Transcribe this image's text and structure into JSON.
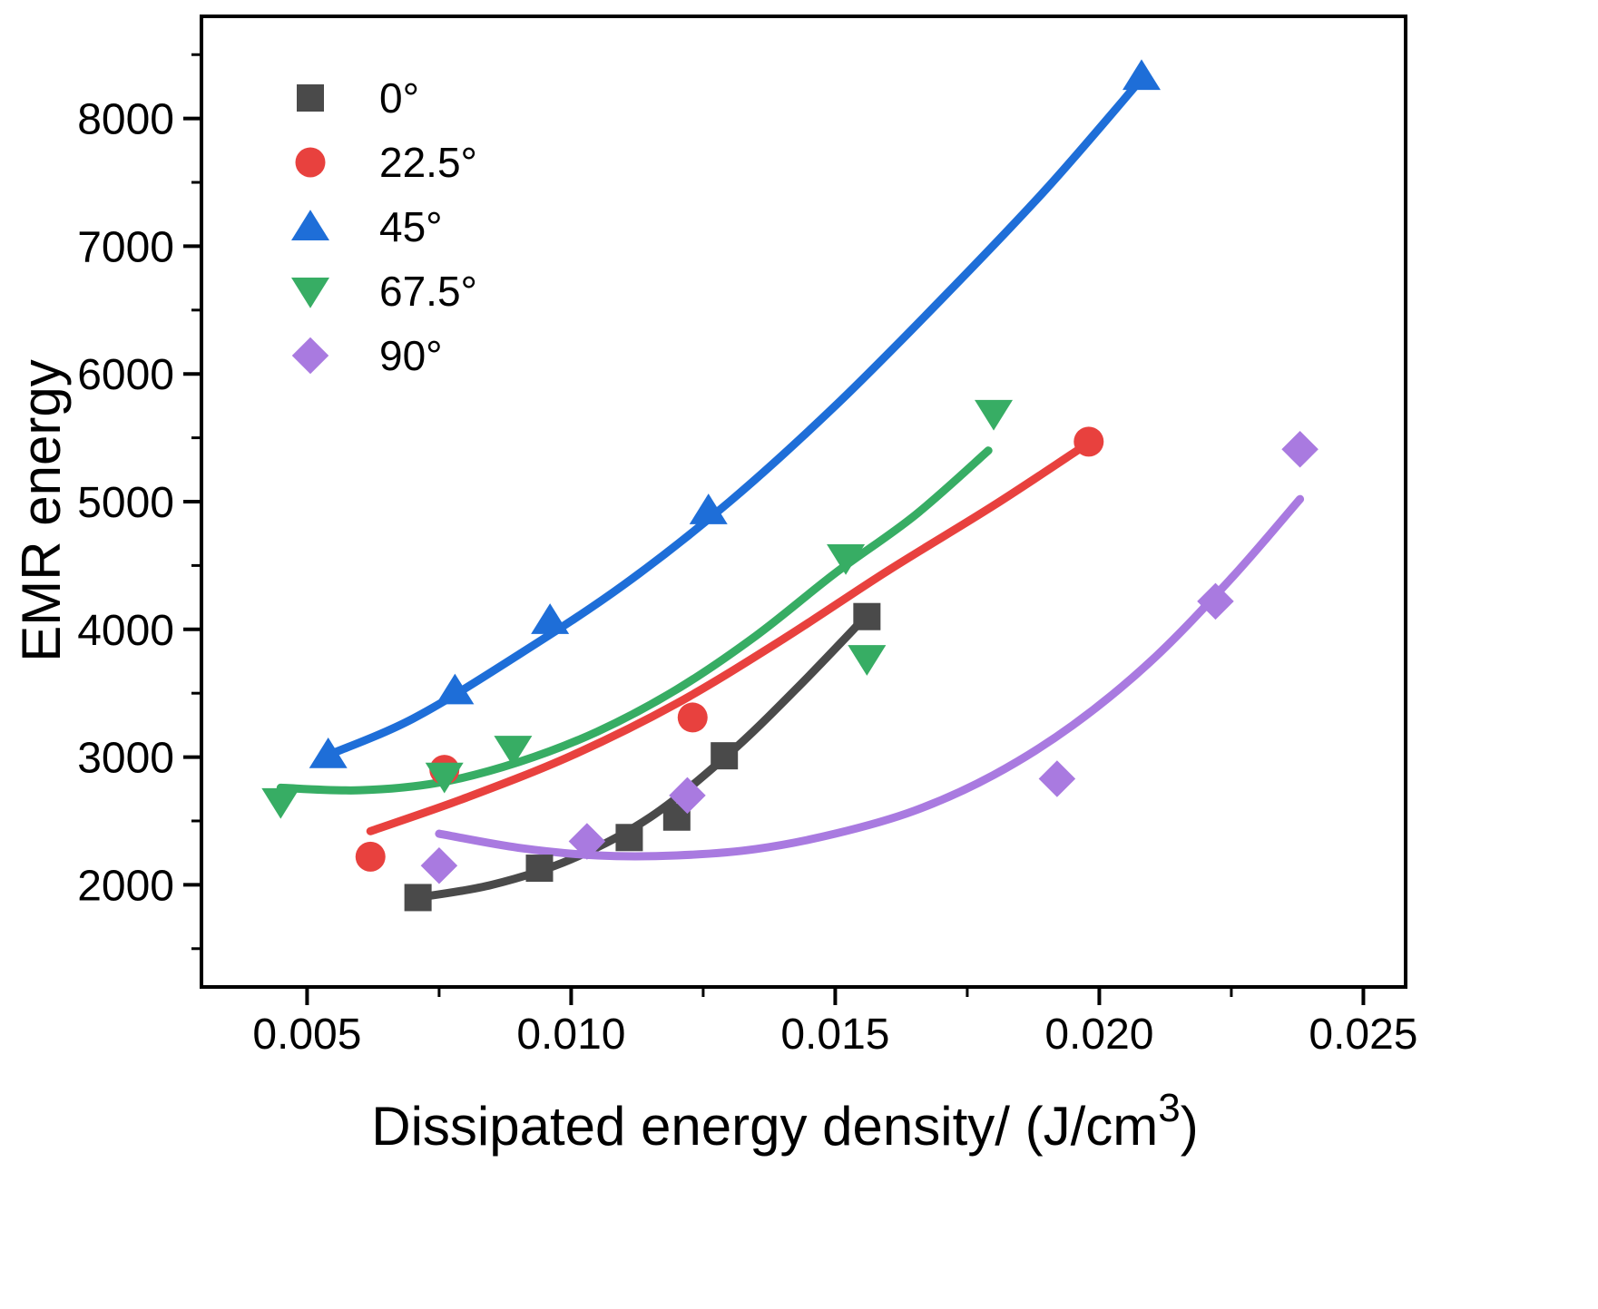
{
  "chart_data": {
    "type": "scatter",
    "title": "",
    "xlabel": "Dissipated energy density/  (J/cm",
    "xlabel_sup": "3",
    "xlabel_tail": ")",
    "ylabel": "EMR energy",
    "xlim": [
      0.003,
      0.0258
    ],
    "ylim": [
      1200,
      8800
    ],
    "x_ticks": [
      0.005,
      0.01,
      0.015,
      0.02,
      0.025
    ],
    "x_tick_labels": [
      "0.005",
      "0.010",
      "0.015",
      "0.020",
      "0.025"
    ],
    "y_ticks": [
      2000,
      3000,
      4000,
      5000,
      6000,
      7000,
      8000
    ],
    "y_tick_labels": [
      "2000",
      "3000",
      "4000",
      "5000",
      "6000",
      "7000",
      "8000"
    ],
    "grid": false,
    "legend_position": "top-left",
    "series": [
      {
        "name": "0°",
        "marker": "square",
        "color": "#4a4a4a",
        "points": [
          [
            0.0071,
            1900
          ],
          [
            0.0094,
            2130
          ],
          [
            0.0111,
            2370
          ],
          [
            0.012,
            2530
          ],
          [
            0.0129,
            3010
          ],
          [
            0.0156,
            4100
          ]
        ],
        "fit": [
          [
            0.0071,
            1900
          ],
          [
            0.0085,
            2000
          ],
          [
            0.01,
            2200
          ],
          [
            0.0115,
            2530
          ],
          [
            0.013,
            3030
          ],
          [
            0.0143,
            3550
          ],
          [
            0.0156,
            4110
          ]
        ]
      },
      {
        "name": "22.5°",
        "marker": "circle",
        "color": "#e8413e",
        "points": [
          [
            0.0062,
            2220
          ],
          [
            0.0076,
            2900
          ],
          [
            0.0123,
            3310
          ],
          [
            0.0198,
            5470
          ]
        ],
        "fit": [
          [
            0.0062,
            2420
          ],
          [
            0.008,
            2680
          ],
          [
            0.01,
            3010
          ],
          [
            0.012,
            3420
          ],
          [
            0.014,
            3920
          ],
          [
            0.016,
            4460
          ],
          [
            0.018,
            4970
          ],
          [
            0.0198,
            5460
          ]
        ]
      },
      {
        "name": "45°",
        "marker": "triangle-up",
        "color": "#1e6ed8",
        "points": [
          [
            0.0054,
            3020
          ],
          [
            0.0078,
            3520
          ],
          [
            0.0096,
            4070
          ],
          [
            0.0126,
            4930
          ],
          [
            0.0208,
            8330
          ]
        ],
        "fit": [
          [
            0.0053,
            3000
          ],
          [
            0.007,
            3300
          ],
          [
            0.009,
            3800
          ],
          [
            0.011,
            4350
          ],
          [
            0.013,
            5000
          ],
          [
            0.015,
            5750
          ],
          [
            0.017,
            6580
          ],
          [
            0.019,
            7450
          ],
          [
            0.0208,
            8310
          ]
        ]
      },
      {
        "name": "67.5°",
        "marker": "triangle-down",
        "color": "#37ad64",
        "points": [
          [
            0.0045,
            2650
          ],
          [
            0.0076,
            2850
          ],
          [
            0.0089,
            3060
          ],
          [
            0.0152,
            4560
          ],
          [
            0.0156,
            3770
          ],
          [
            0.018,
            5690
          ]
        ],
        "fit": [
          [
            0.0045,
            2760
          ],
          [
            0.006,
            2740
          ],
          [
            0.0075,
            2800
          ],
          [
            0.009,
            2960
          ],
          [
            0.0105,
            3200
          ],
          [
            0.012,
            3530
          ],
          [
            0.0135,
            3950
          ],
          [
            0.015,
            4440
          ],
          [
            0.0165,
            4890
          ],
          [
            0.0179,
            5400
          ]
        ]
      },
      {
        "name": "90°",
        "marker": "diamond",
        "color": "#a97ae0",
        "points": [
          [
            0.0075,
            2150
          ],
          [
            0.0103,
            2340
          ],
          [
            0.0122,
            2700
          ],
          [
            0.0192,
            2830
          ],
          [
            0.0222,
            4220
          ],
          [
            0.0238,
            5410
          ]
        ],
        "fit": [
          [
            0.0075,
            2400
          ],
          [
            0.009,
            2290
          ],
          [
            0.0105,
            2230
          ],
          [
            0.012,
            2230
          ],
          [
            0.0135,
            2280
          ],
          [
            0.015,
            2400
          ],
          [
            0.0165,
            2580
          ],
          [
            0.018,
            2860
          ],
          [
            0.0195,
            3250
          ],
          [
            0.021,
            3760
          ],
          [
            0.0225,
            4400
          ],
          [
            0.0238,
            5020
          ]
        ]
      }
    ]
  }
}
